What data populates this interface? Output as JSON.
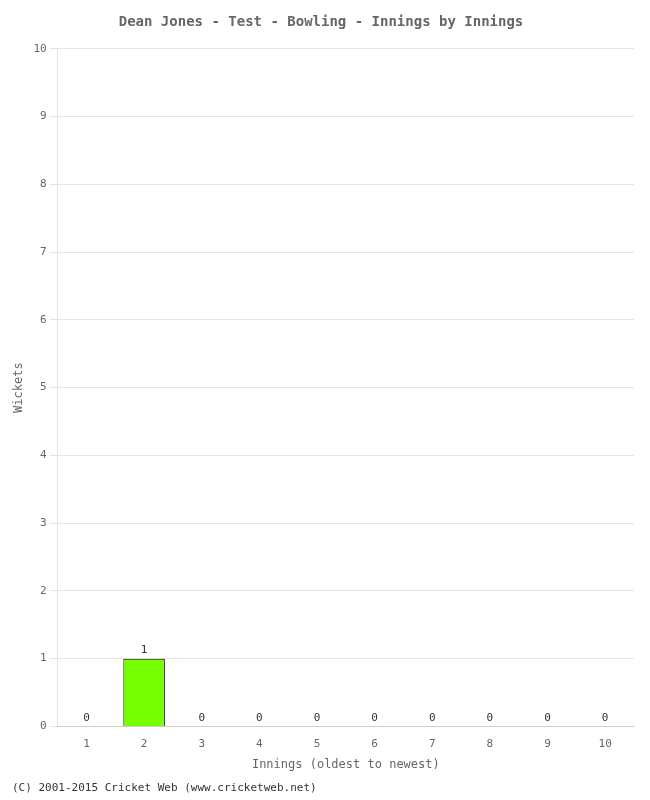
{
  "chart_data": {
    "type": "bar",
    "title": "Dean Jones - Test - Bowling - Innings by Innings",
    "xlabel": "Innings (oldest to newest)",
    "ylabel": "Wickets",
    "categories": [
      "1",
      "2",
      "3",
      "4",
      "5",
      "6",
      "7",
      "8",
      "9",
      "10"
    ],
    "values": [
      0,
      1,
      0,
      0,
      0,
      0,
      0,
      0,
      0,
      0
    ],
    "color": "#77ff00",
    "ylim": [
      0,
      10
    ],
    "yticks": [
      0,
      1,
      2,
      3,
      4,
      5,
      6,
      7,
      8,
      9,
      10
    ],
    "grid": true,
    "data_labels": true,
    "annotations": [
      "(C) 2001-2015 Cricket Web (www.cricketweb.net)"
    ]
  }
}
